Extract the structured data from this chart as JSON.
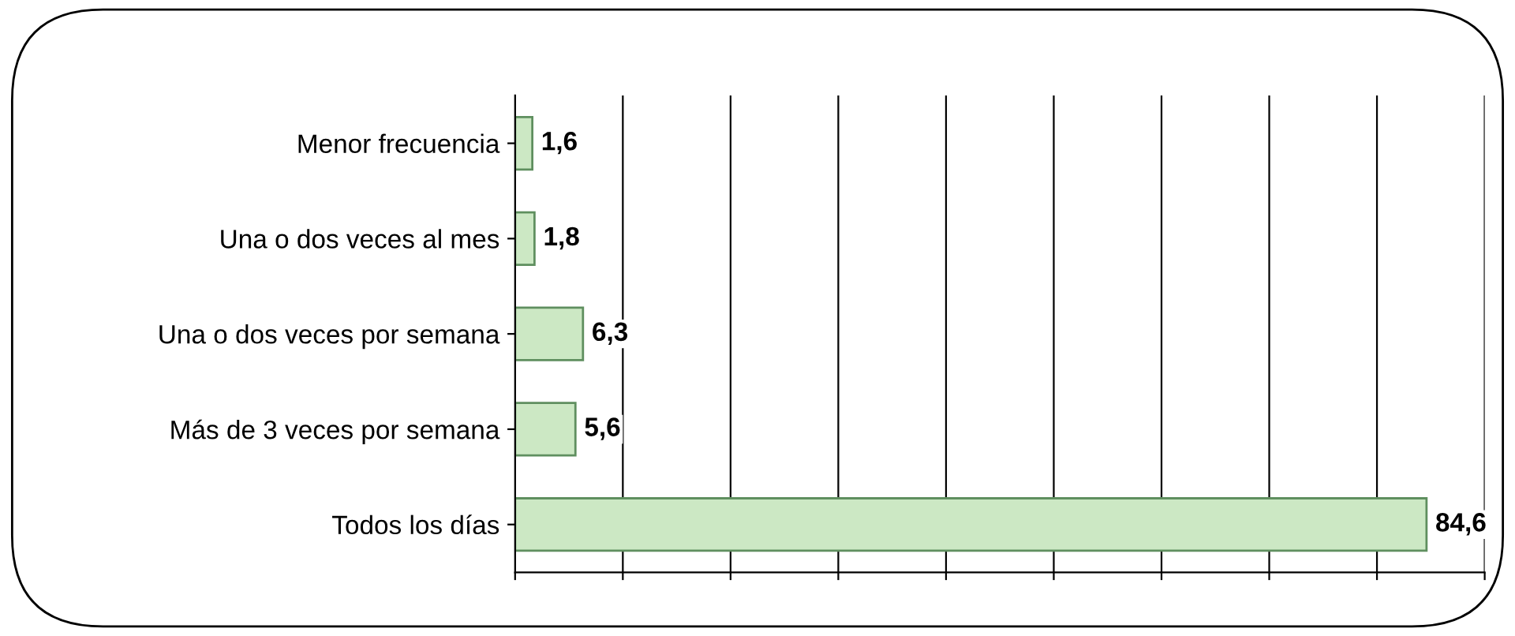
{
  "chart_data": {
    "type": "bar",
    "orientation": "horizontal",
    "categories": [
      "Menor frecuencia",
      "Una o dos veces al mes",
      "Una o dos veces por semana",
      "Más de 3 veces por semana",
      "Todos los días"
    ],
    "values": [
      1.6,
      1.8,
      6.3,
      5.6,
      84.6
    ],
    "value_labels": [
      "1,6",
      "1,8",
      "6,3",
      "5,6",
      "84,6"
    ],
    "color": "#cce8c4",
    "xlim": [
      0,
      90
    ],
    "xticks": [
      {
        "value": 0,
        "label": null
      },
      {
        "value": 10,
        "label": null
      },
      {
        "value": 20,
        "label": null
      },
      {
        "value": 30,
        "label": null
      },
      {
        "value": 40,
        "label": null
      },
      {
        "value": 50,
        "label": null
      },
      {
        "value": 60,
        "label": null
      },
      {
        "value": 70,
        "label": null
      },
      {
        "value": 80,
        "label": null
      },
      {
        "value": 90,
        "label": null
      }
    ],
    "tick_labels": "y",
    "grid": "x"
  }
}
